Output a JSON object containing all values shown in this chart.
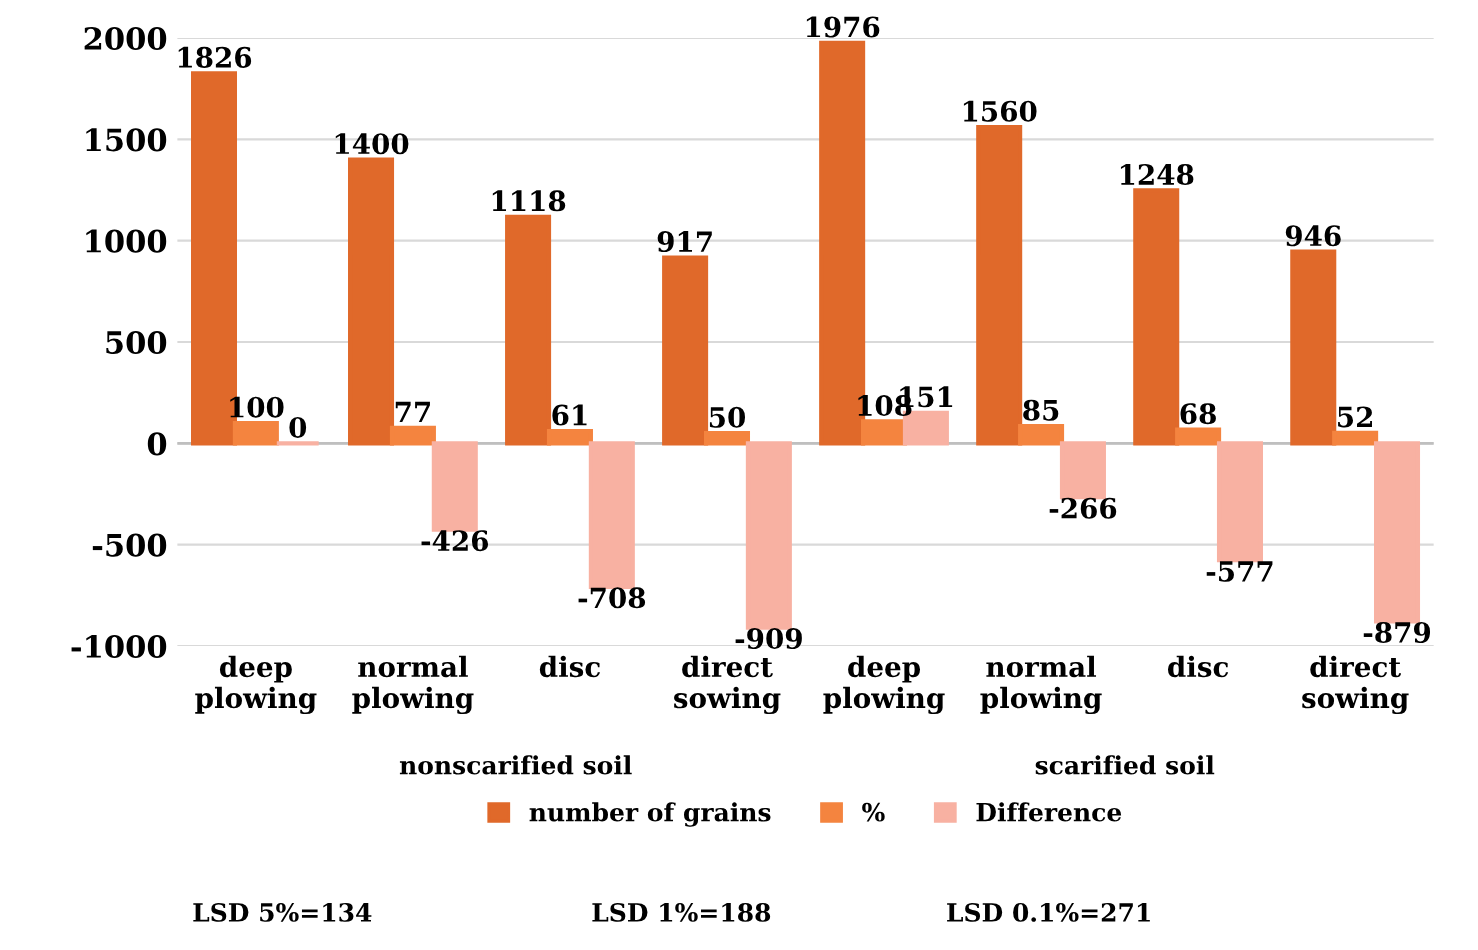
{
  "chart_data": {
    "type": "bar",
    "categories": [
      "deep plowing",
      "normal plowing",
      "disc",
      "direct sowing",
      "deep plowing",
      "normal plowing",
      "disc",
      "direct sowing"
    ],
    "series": [
      {
        "name": "number of grains",
        "color": "#e0692a",
        "values": [
          1826,
          1400,
          1118,
          917,
          1976,
          1560,
          1248,
          946
        ]
      },
      {
        "name": "%",
        "color": "#f4843f",
        "values": [
          100,
          77,
          61,
          50,
          108,
          85,
          68,
          52
        ]
      },
      {
        "name": "Difference",
        "color": "#f8b1a2",
        "values": [
          0,
          -426,
          -708,
          -909,
          151,
          -266,
          -577,
          -879
        ]
      }
    ],
    "ylim": [
      -1000,
      2000
    ],
    "yticks": [
      -1000,
      -500,
      0,
      500,
      1000,
      1500,
      2000
    ],
    "grid": "y",
    "legend": "bottom",
    "data_labels": true,
    "annotations": [
      "nonscarified soil",
      "scarified soil",
      "LSD 5%=134",
      "LSD 1%=188",
      "LSD 0.1%=271"
    ]
  }
}
